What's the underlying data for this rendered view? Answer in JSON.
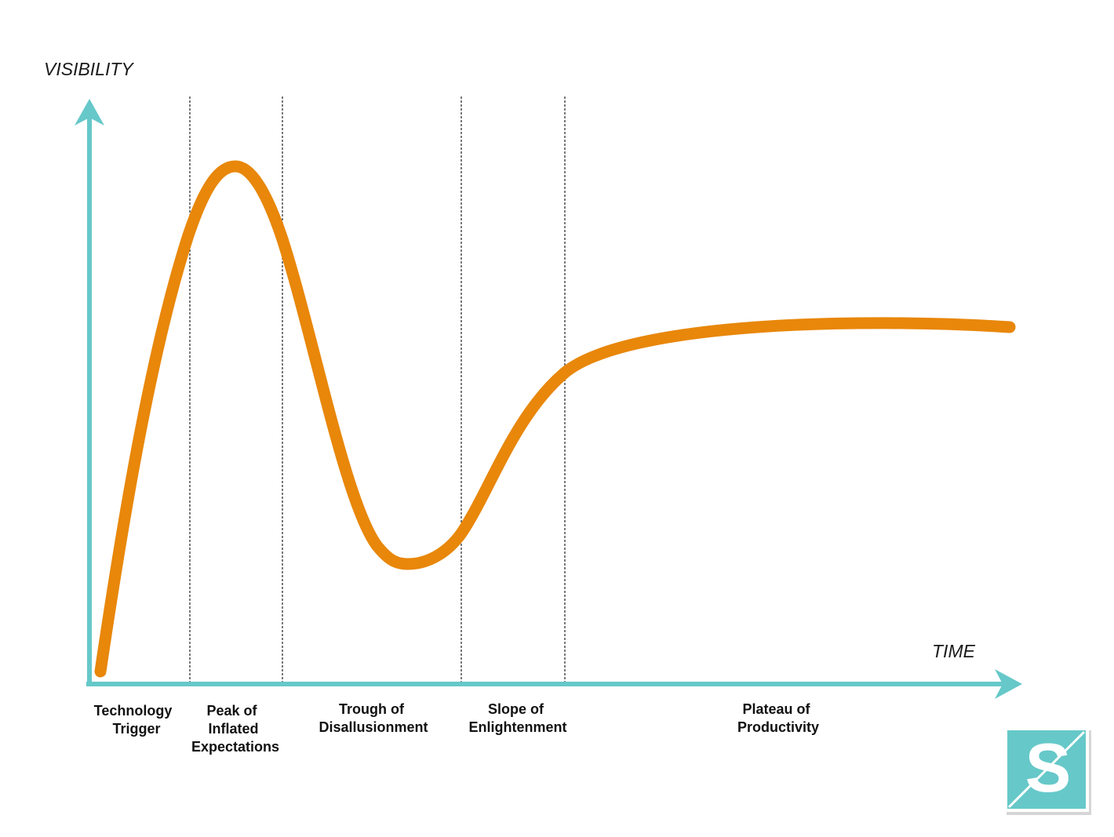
{
  "colors": {
    "axis": "#66c8c9",
    "curve": "#e8870a",
    "divider": "#333333",
    "logo_background": "#66c8c9",
    "logo_foreground": "#ffffff"
  },
  "axes": {
    "y_title": "VISIBILITY",
    "x_title": "TIME"
  },
  "phases": [
    {
      "id": "technology-trigger",
      "lines": [
        "Technology",
        "Trigger"
      ]
    },
    {
      "id": "peak-of-inflated-expectations",
      "lines": [
        "Peak of",
        "Inflated",
        "Expectations"
      ]
    },
    {
      "id": "trough-of-disallusionment",
      "lines": [
        "Trough of",
        "Disallusionment"
      ]
    },
    {
      "id": "slope-of-enlightenment",
      "lines": [
        "Slope of",
        "Enlightenment"
      ]
    },
    {
      "id": "plateau-of-productivity",
      "lines": [
        "Plateau of",
        "Productivity"
      ]
    }
  ],
  "logo": {
    "icon": "s-logo-icon",
    "letter": "S"
  }
}
